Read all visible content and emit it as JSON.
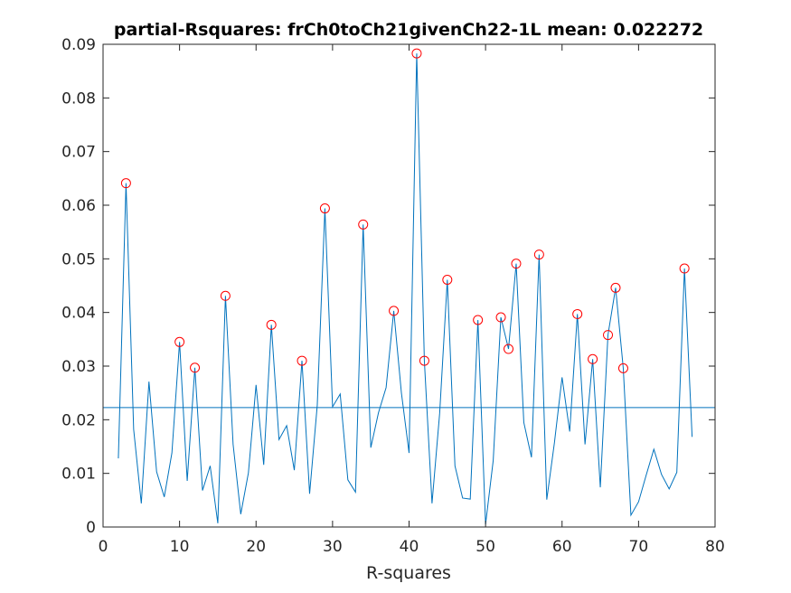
{
  "chart_data": {
    "type": "line",
    "title": "partial-Rsquares: frCh0toCh21givenCh22-1L mean: 0.022272",
    "xlabel": "R-squares",
    "ylabel": "",
    "xlim": [
      0,
      80
    ],
    "ylim": [
      0,
      0.09
    ],
    "xticks": [
      0,
      10,
      20,
      30,
      40,
      50,
      60,
      70,
      80
    ],
    "yticks": [
      0,
      0.01,
      0.02,
      0.03,
      0.04,
      0.05,
      0.06,
      0.07,
      0.08,
      0.09
    ],
    "xtick_labels": [
      "0",
      "10",
      "20",
      "30",
      "40",
      "50",
      "60",
      "70",
      "80"
    ],
    "ytick_labels": [
      "0",
      "0.01",
      "0.02",
      "0.03",
      "0.04",
      "0.05",
      "0.06",
      "0.07",
      "0.08",
      "0.09"
    ],
    "grid": false,
    "series_color": "#0072bd",
    "marker_color": "#ff0000",
    "mean": 0.022272,
    "series": [
      {
        "x": [
          2,
          3,
          4,
          5,
          6,
          7,
          8,
          9,
          10,
          11,
          12,
          13,
          14,
          15,
          16,
          17,
          18,
          19,
          20,
          21,
          22,
          23,
          24,
          25,
          26,
          27,
          28,
          29,
          30,
          31,
          32,
          33,
          34,
          35,
          36,
          37,
          38,
          39,
          40,
          41,
          42,
          43,
          44,
          45,
          46,
          47,
          48,
          49,
          50,
          51,
          52,
          53,
          54,
          55,
          56,
          57,
          58,
          59,
          60,
          61,
          62,
          63,
          64,
          65,
          66,
          67,
          68,
          69,
          70,
          71,
          72,
          73,
          74,
          75,
          76,
          77
        ],
        "y": [
          0.0128,
          0.0641,
          0.0182,
          0.0044,
          0.0271,
          0.0103,
          0.0056,
          0.0138,
          0.0345,
          0.0086,
          0.0297,
          0.0068,
          0.0114,
          0.0007,
          0.0431,
          0.0154,
          0.0024,
          0.0101,
          0.0265,
          0.0116,
          0.0377,
          0.0163,
          0.0189,
          0.0106,
          0.031,
          0.0062,
          0.0227,
          0.0594,
          0.0224,
          0.0248,
          0.0088,
          0.0065,
          0.0564,
          0.0148,
          0.0213,
          0.026,
          0.0403,
          0.025,
          0.0138,
          0.0883,
          0.031,
          0.0044,
          0.0212,
          0.0461,
          0.0114,
          0.0054,
          0.0052,
          0.0386,
          0.0005,
          0.0124,
          0.0391,
          0.0332,
          0.0491,
          0.0195,
          0.013,
          0.0508,
          0.0051,
          0.0157,
          0.0279,
          0.0178,
          0.0397,
          0.0154,
          0.0313,
          0.0074,
          0.0358,
          0.0446,
          0.0296,
          0.0022,
          0.0047,
          0.0097,
          0.0145,
          0.0098,
          0.0071,
          0.0102,
          0.0482,
          0.0168
        ]
      }
    ],
    "peaks": {
      "x": [
        3,
        10,
        12,
        16,
        22,
        26,
        29,
        34,
        38,
        41,
        42,
        45,
        49,
        52,
        53,
        54,
        57,
        62,
        64,
        66,
        67,
        68,
        76
      ],
      "y": [
        0.0641,
        0.0345,
        0.0297,
        0.0431,
        0.0377,
        0.031,
        0.0594,
        0.0564,
        0.0403,
        0.0883,
        0.031,
        0.0461,
        0.0386,
        0.0391,
        0.0332,
        0.0491,
        0.0508,
        0.0397,
        0.0313,
        0.0358,
        0.0446,
        0.0296,
        0.0482
      ]
    }
  }
}
